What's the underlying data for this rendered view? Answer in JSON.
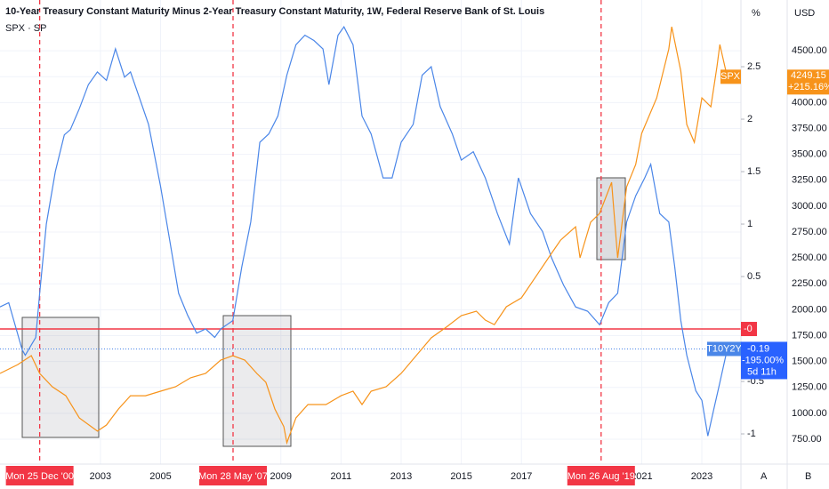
{
  "chart_data": {
    "type": "line",
    "title": "10-Year Treasury Constant Maturity Minus 2-Year Treasury Constant Maturity, 1W, Federal Reserve Bank of St. Louis",
    "y_unit": "%",
    "y2_unit": "USD",
    "controls": [
      "A",
      "B"
    ],
    "xlim": [
      1999.66,
      2024.3
    ],
    "xticks": [
      2003,
      2005,
      2009,
      2011,
      2013,
      2015,
      2017,
      2021,
      2023
    ],
    "ylim": [
      -1.288,
      3.136
    ],
    "yticks": [
      -1,
      -0.5,
      0.5,
      1,
      1.5,
      2,
      2.5
    ],
    "y2lim": [
      510,
      4990
    ],
    "y2ticks": [
      {
        "value": 750,
        "label": "750.00"
      },
      {
        "value": 1000,
        "label": "1000.00"
      },
      {
        "value": 1250,
        "label": "1250.00"
      },
      {
        "value": 1500,
        "label": "1500.00"
      },
      {
        "value": 1750,
        "label": "1750.00"
      },
      {
        "value": 2000,
        "label": "2000.00"
      },
      {
        "value": 2250,
        "label": "2250.00"
      },
      {
        "value": 2500,
        "label": "2500.00"
      },
      {
        "value": 2750,
        "label": "2750.00"
      },
      {
        "value": 3000,
        "label": "3000.00"
      },
      {
        "value": 3250,
        "label": "3250.00"
      },
      {
        "value": 3500,
        "label": "3500.00"
      },
      {
        "value": 3750,
        "label": "3750.00"
      },
      {
        "value": 4000,
        "label": "4000.00"
      },
      {
        "value": 4250,
        "label": "4250.00"
      },
      {
        "value": 4500,
        "label": "4500.00"
      }
    ],
    "grid": true,
    "hline": {
      "value": 0,
      "label": "-0",
      "color": "#f23645"
    },
    "vlines": [
      {
        "value": 2000.98,
        "label": "Mon 25 Dec '00"
      },
      {
        "value": 2007.41,
        "label": "Mon 28 May '07"
      },
      {
        "value": 2019.65,
        "label": "Mon 26 Aug '19"
      }
    ],
    "vline_color": "#f23645",
    "series": [
      {
        "name": "T10Y2Y",
        "color": "#4a86e8",
        "change": "-195.00%",
        "countdown": "5d 11h",
        "x": [
          1999.66,
          1999.95,
          2000.4,
          2000.5,
          2000.85,
          2000.98,
          2001.2,
          2001.5,
          2001.8,
          2002.0,
          2002.3,
          2002.6,
          2002.9,
          2003.2,
          2003.5,
          2003.8,
          2004.0,
          2004.3,
          2004.6,
          2005.0,
          2005.3,
          2005.6,
          2005.9,
          2006.2,
          2006.5,
          2006.8,
          2007.0,
          2007.4,
          2007.7,
          2008.0,
          2008.3,
          2008.6,
          2008.9,
          2009.2,
          2009.5,
          2009.8,
          2010.1,
          2010.4,
          2010.6,
          2010.9,
          2011.1,
          2011.4,
          2011.7,
          2012.0,
          2012.4,
          2012.7,
          2013.0,
          2013.4,
          2013.7,
          2014.0,
          2014.3,
          2014.7,
          2015.0,
          2015.4,
          2015.8,
          2016.2,
          2016.6,
          2016.9,
          2017.3,
          2017.7,
          2018.0,
          2018.4,
          2018.8,
          2019.2,
          2019.6,
          2019.9,
          2020.2,
          2020.5,
          2020.8,
          2021.1,
          2021.3,
          2021.6,
          2021.9,
          2022.1,
          2022.3,
          2022.5,
          2022.8,
          2023.0,
          2023.2,
          2023.4,
          2023.6,
          2023.8,
          2023.9
        ],
        "values": [
          0.21,
          0.25,
          -0.2,
          -0.25,
          -0.08,
          0.34,
          1.0,
          1.5,
          1.85,
          1.9,
          2.1,
          2.33,
          2.45,
          2.37,
          2.67,
          2.4,
          2.45,
          2.2,
          1.95,
          1.36,
          0.85,
          0.34,
          0.13,
          -0.04,
          0,
          -0.08,
          0,
          0.08,
          0.59,
          1.02,
          1.78,
          1.86,
          2.03,
          2.42,
          2.71,
          2.8,
          2.75,
          2.67,
          2.33,
          2.8,
          2.88,
          2.71,
          2.03,
          1.86,
          1.44,
          1.44,
          1.78,
          1.95,
          2.42,
          2.5,
          2.12,
          1.86,
          1.61,
          1.69,
          1.44,
          1.1,
          0.81,
          1.44,
          1.1,
          0.93,
          0.68,
          0.42,
          0.21,
          0.17,
          0.04,
          0.25,
          0.34,
          1.02,
          1.27,
          1.44,
          1.57,
          1.1,
          1.02,
          0.59,
          0.08,
          -0.25,
          -0.59,
          -0.68,
          -1.02,
          -0.76,
          -0.51,
          -0.25,
          -0.19
        ]
      },
      {
        "name": "SPX · SP",
        "tag": "SPX",
        "color": "#f7931a",
        "axis": "y2",
        "change": "+215.16%",
        "x": [
          1999.66,
          2000.25,
          2000.7,
          2000.98,
          2001.4,
          2001.85,
          2002.3,
          2002.9,
          2003.2,
          2003.6,
          2004.0,
          2004.5,
          2005.0,
          2005.5,
          2006.0,
          2006.5,
          2007.0,
          2007.4,
          2007.8,
          2008.2,
          2008.5,
          2008.8,
          2009.1,
          2009.2,
          2009.5,
          2009.9,
          2010.5,
          2011.0,
          2011.4,
          2011.7,
          2012.0,
          2012.5,
          2013.0,
          2013.5,
          2014.0,
          2014.5,
          2015.0,
          2015.5,
          2015.8,
          2016.1,
          2016.5,
          2017.0,
          2017.5,
          2018.0,
          2018.3,
          2018.8,
          2018.95,
          2019.3,
          2019.6,
          2020.0,
          2020.2,
          2020.5,
          2020.8,
          2021.0,
          2021.5,
          2021.9,
          2022.0,
          2022.3,
          2022.5,
          2022.75,
          2023.0,
          2023.3,
          2023.5,
          2023.6,
          2023.8,
          2023.9
        ],
        "values": [
          1385,
          1470,
          1557,
          1385,
          1257,
          1170,
          955,
          828,
          888,
          1042,
          1170,
          1170,
          1214,
          1257,
          1343,
          1385,
          1514,
          1557,
          1514,
          1385,
          1300,
          1042,
          871,
          716,
          955,
          1085,
          1085,
          1170,
          1214,
          1085,
          1214,
          1257,
          1385,
          1557,
          1729,
          1832,
          1943,
          1986,
          1900,
          1857,
          2029,
          2115,
          2329,
          2544,
          2672,
          2801,
          2501,
          2844,
          2930,
          3230,
          2501,
          3187,
          3402,
          3702,
          4045,
          4517,
          4732,
          4303,
          3788,
          3616,
          4045,
          3959,
          4345,
          4560,
          4303,
          4249.15
        ]
      }
    ]
  }
}
